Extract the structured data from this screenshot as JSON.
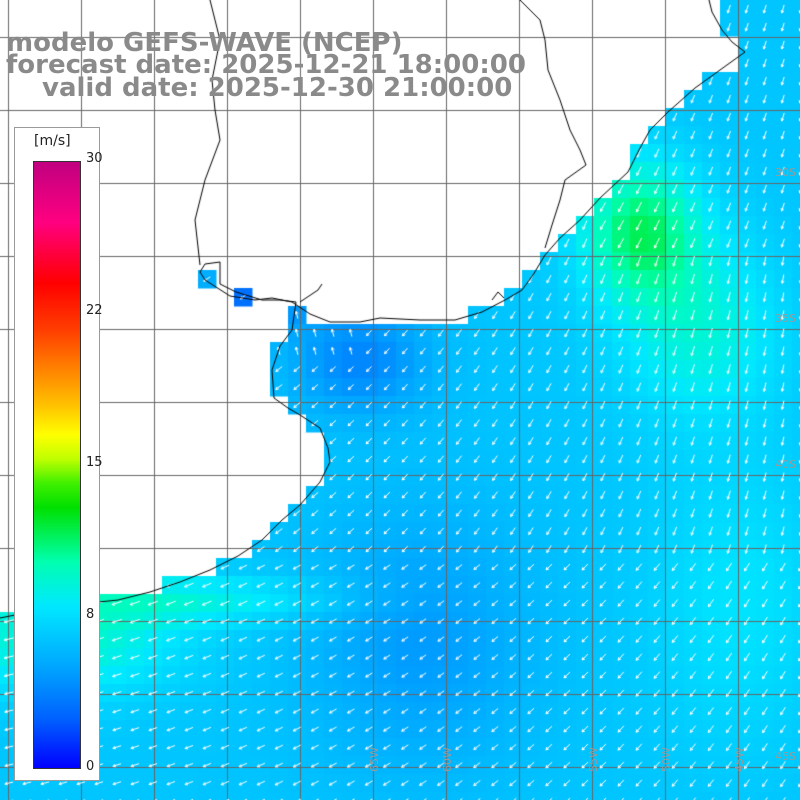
{
  "header": {
    "line1": "modelo GEFS-WAVE (NCEP)",
    "line2": "forecast date: 2025-12-21 18:00:00",
    "line3": "valid date: 2025-12-30 21:00:00"
  },
  "colorbar": {
    "unit": "[m/s]",
    "min": 0,
    "max": 30,
    "ticks": [
      {
        "label": "30",
        "value": 30
      },
      {
        "label": "22",
        "value": 22
      },
      {
        "label": "15",
        "value": 15
      },
      {
        "label": "8",
        "value": 8
      },
      {
        "label": "0",
        "value": 0
      }
    ]
  },
  "map": {
    "lon_labels": [
      "65W",
      "60W",
      "55W",
      "50W",
      "45W"
    ],
    "lat_labels": [
      "30S",
      "35S",
      "40S",
      "45S"
    ],
    "field": "wind speed and direction",
    "colors": {
      "land": "#ffffff",
      "coast": "#000000",
      "grid": "#666666",
      "arrow": "#ffffff"
    }
  }
}
